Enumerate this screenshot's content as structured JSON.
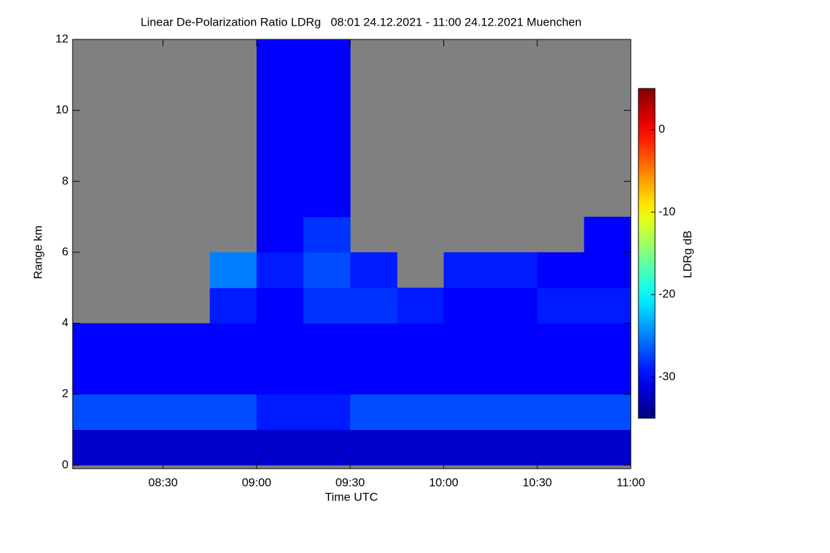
{
  "chart_data": {
    "type": "heatmap",
    "title": "Linear De-Polarization Ratio LDRg   08:01 24.12.2021 - 11:00 24.12.2021 Muenchen",
    "xlabel": "Time UTC",
    "ylabel": "Range km",
    "colorbar_label": "LDRg dB",
    "colormap": "jet",
    "background": "#808080",
    "xlim": [
      481,
      660
    ],
    "ylim": [
      -0.1,
      12
    ],
    "xticks": [
      {
        "value": 510,
        "label": "08:30"
      },
      {
        "value": 540,
        "label": "09:00"
      },
      {
        "value": 570,
        "label": "09:30"
      },
      {
        "value": 600,
        "label": "10:00"
      },
      {
        "value": 630,
        "label": "10:30"
      },
      {
        "value": 660,
        "label": "11:00"
      }
    ],
    "yticks": [
      0,
      2,
      4,
      6,
      8,
      10,
      12
    ],
    "zlim": [
      -35,
      5
    ],
    "zticks": [
      0,
      -10,
      -20,
      -30
    ],
    "xbins": [
      480,
      495,
      510,
      525,
      540,
      555,
      570,
      585,
      600,
      615,
      630,
      645,
      660
    ],
    "ybins": [
      0,
      1,
      2,
      3,
      4,
      5,
      6,
      7,
      8,
      9,
      10,
      11,
      12
    ],
    "z": [
      [
        -32,
        -32,
        -32,
        -32,
        -32,
        -32,
        -32,
        -32,
        -32,
        -32,
        -32,
        -32
      ],
      [
        -27,
        -27,
        -27,
        -27,
        -29,
        -29,
        -27,
        -27,
        -27,
        -27,
        -27,
        -27
      ],
      [
        -30,
        -30,
        -30,
        -30,
        -30,
        -30,
        -30,
        -30,
        -30,
        -30,
        -30,
        -30
      ],
      [
        -30,
        -30,
        -30,
        -30,
        -30,
        -30,
        -30,
        -30,
        -30,
        -30,
        -30,
        -30
      ],
      [
        null,
        null,
        null,
        -29,
        -30,
        -28,
        -28,
        -29,
        -30,
        -30,
        -29,
        -29
      ],
      [
        null,
        null,
        null,
        -25,
        -29,
        -27,
        -29,
        null,
        -29,
        -29,
        -30,
        -30
      ],
      [
        null,
        null,
        null,
        null,
        -30,
        -28,
        null,
        null,
        null,
        null,
        null,
        -30
      ],
      [
        null,
        null,
        null,
        null,
        -30,
        -30,
        null,
        null,
        null,
        null,
        null,
        null
      ],
      [
        null,
        null,
        null,
        null,
        -30,
        -30,
        null,
        null,
        null,
        null,
        null,
        null
      ],
      [
        null,
        null,
        null,
        null,
        -30,
        -30,
        null,
        null,
        null,
        null,
        null,
        null
      ],
      [
        null,
        null,
        null,
        null,
        -30,
        -30,
        null,
        null,
        null,
        null,
        null,
        null
      ],
      [
        null,
        null,
        null,
        null,
        -30,
        -30,
        null,
        null,
        null,
        null,
        null,
        null
      ]
    ]
  }
}
